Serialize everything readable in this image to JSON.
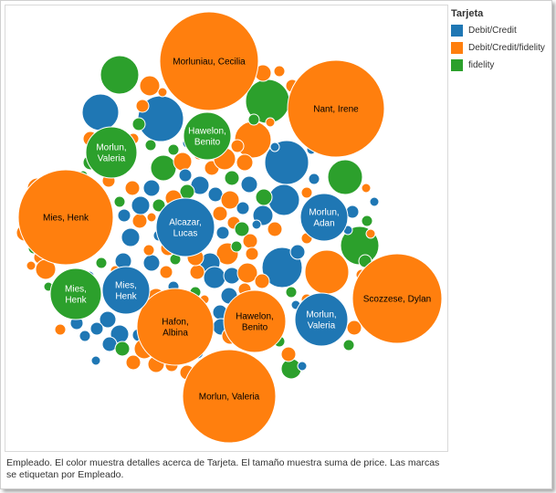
{
  "legend": {
    "title": "Tarjeta",
    "items": [
      {
        "label": "Debit/Credit",
        "color": "#1f77b4"
      },
      {
        "label": "Debit/Credit/fidelity",
        "color": "#ff7f0e"
      },
      {
        "label": "fidelity",
        "color": "#2ca02c"
      }
    ]
  },
  "caption": "Empleado.  El color muestra detalles acerca de Tarjeta.  El tamaño muestra suma de price.  Las marcas se etiquetan por Empleado.",
  "chart_data": {
    "type": "bubble",
    "size_measure": "suma de price",
    "color_measure": "Tarjeta",
    "label_measure": "Empleado",
    "labeled_bubbles": [
      {
        "label": "Morluniau, Cecilia",
        "tarjeta": "Debit/Credit/fidelity"
      },
      {
        "label": "Nant, Irene",
        "tarjeta": "Debit/Credit/fidelity"
      },
      {
        "label": "Mies, Henk",
        "tarjeta": "Debit/Credit/fidelity"
      },
      {
        "label": "Scozzese, Dylan",
        "tarjeta": "Debit/Credit/fidelity"
      },
      {
        "label": "Morlun, Valeria",
        "tarjeta": "Debit/Credit/fidelity"
      },
      {
        "label": "Hafon, Albina",
        "tarjeta": "Debit/Credit/fidelity"
      },
      {
        "label": "Hawelon, Benito",
        "tarjeta": "Debit/Credit/fidelity"
      },
      {
        "label": "Alcazar, Lucas",
        "tarjeta": "Debit/Credit"
      },
      {
        "label": "Morlun, Adan",
        "tarjeta": "Debit/Credit"
      },
      {
        "label": "Mies, Henk",
        "tarjeta": "Debit/Credit"
      },
      {
        "label": "Morlun, Valeria",
        "tarjeta": "Debit/Credit"
      },
      {
        "label": "Morlun, Valeria",
        "tarjeta": "fidelity"
      },
      {
        "label": "Hawelon, Benito",
        "tarjeta": "fidelity"
      },
      {
        "label": "Mies, Henk",
        "tarjeta": "fidelity"
      }
    ]
  }
}
